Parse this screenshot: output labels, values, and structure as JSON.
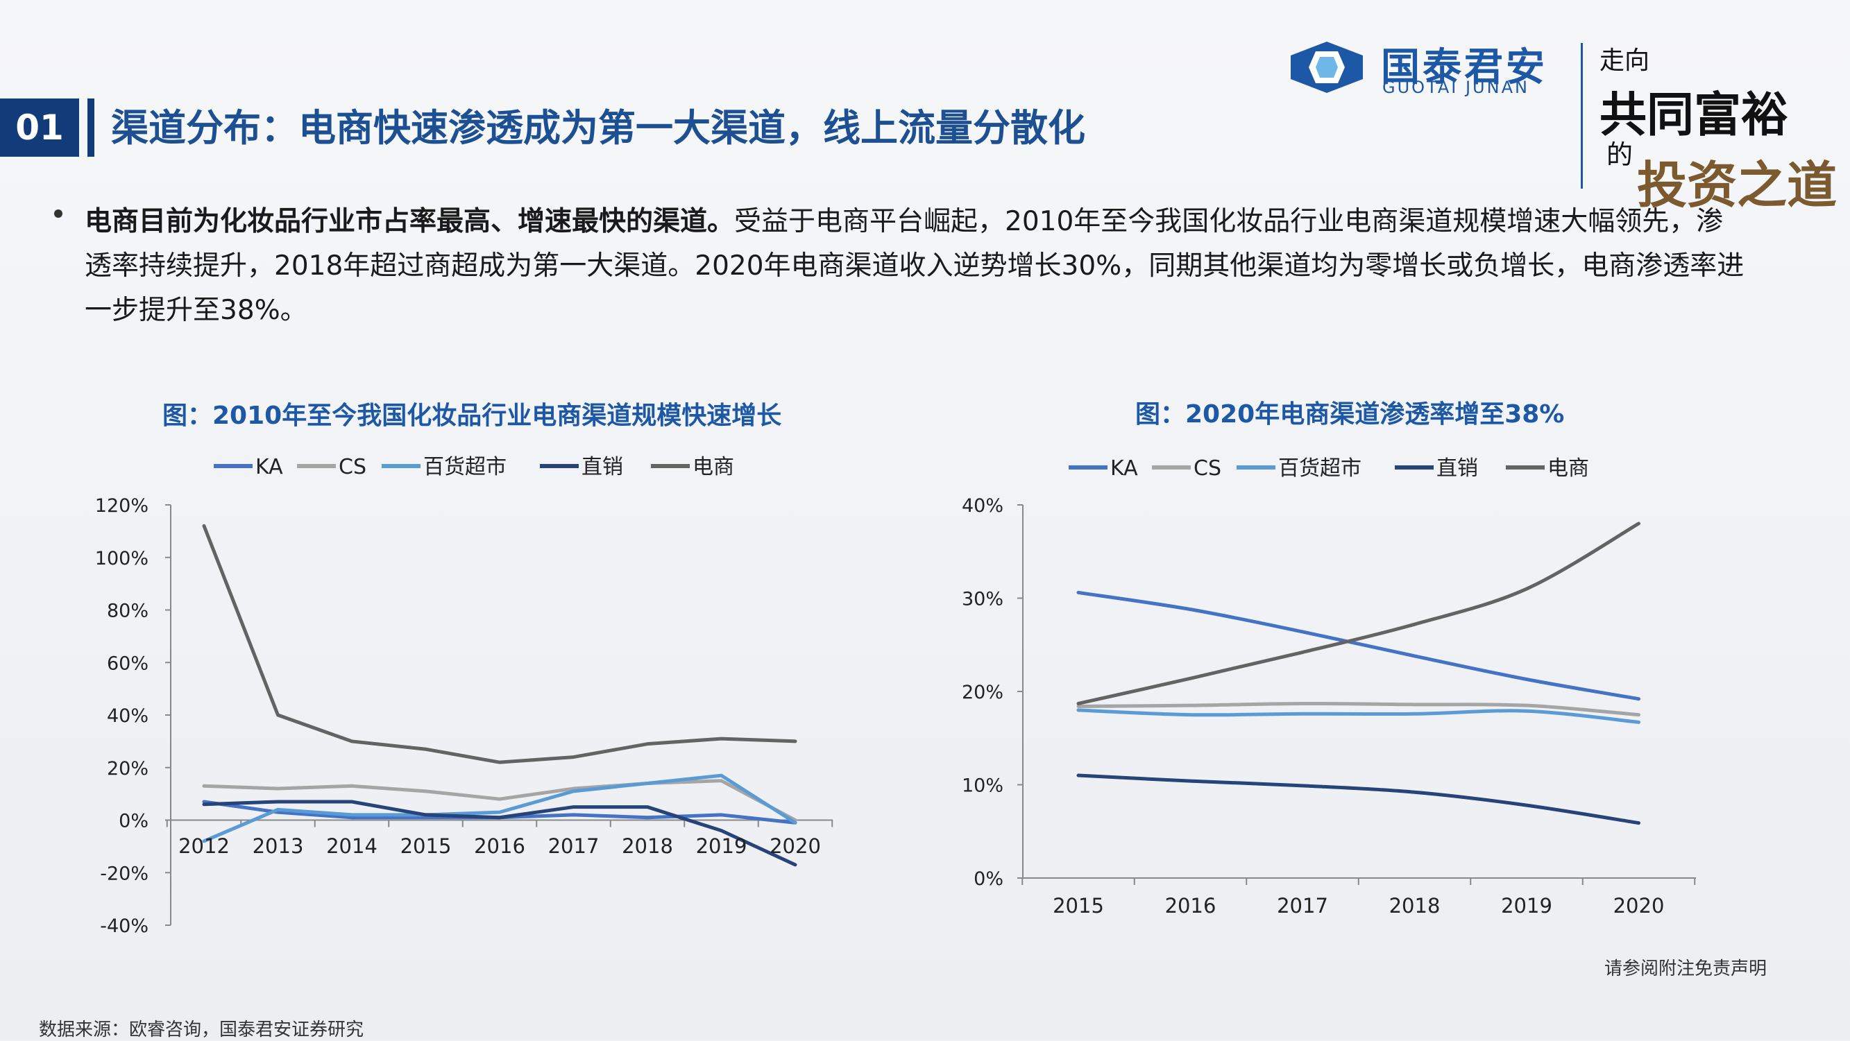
{
  "header": {
    "section_number": "01",
    "title": "渠道分布：电商快速渗透成为第一大渠道，线上流量分散化"
  },
  "logo": {
    "name_cn": "国泰君安",
    "name_en": "GUOTAI JUNAN",
    "slogan_line1": "走向",
    "slogan_line2": "共同富裕",
    "slogan_line3": "的",
    "slogan_line4": "投资之道",
    "brand_color": "#1d58a6"
  },
  "bullet": {
    "bold_text": "电商目前为化妆品行业市占率最高、增速最快的渠道。",
    "text": "受益于电商平台崛起，2010年至今我国化妆品行业电商渠道规模增速大幅领先，渗透率持续提升，2018年超过商超成为第一大渠道。2020年电商渠道收入逆势增长30%，同期其他渠道均为零增长或负增长，电商渗透率进一步提升至38%。"
  },
  "chart_data": [
    {
      "type": "line",
      "title": "图：2010年至今我国化妆品行业电商渠道规模快速增长",
      "categories": [
        "2012",
        "2013",
        "2014",
        "2015",
        "2016",
        "2017",
        "2018",
        "2019",
        "2020"
      ],
      "y_ticks": [
        "120%",
        "100%",
        "80%",
        "60%",
        "40%",
        "20%",
        "0%",
        "-20%",
        "-40%"
      ],
      "ylim": [
        -40,
        120
      ],
      "y_unit": "%",
      "grid": false,
      "legend_position": "top",
      "series": [
        {
          "name": "KA",
          "color": "#4472c4",
          "values": [
            7,
            3,
            1,
            1,
            1,
            2,
            1,
            2,
            -1
          ]
        },
        {
          "name": "CS",
          "color": "#a5a5a5",
          "values": [
            13,
            12,
            13,
            11,
            8,
            12,
            14,
            15,
            0
          ]
        },
        {
          "name": "百货超市",
          "color": "#5b9bd5",
          "values": [
            -8,
            4,
            2,
            2,
            3,
            11,
            14,
            17,
            -1
          ]
        },
        {
          "name": "直销",
          "color": "#264478",
          "values": [
            6,
            7,
            7,
            2,
            1,
            5,
            5,
            -4,
            -17
          ]
        },
        {
          "name": "电商",
          "color": "#636363",
          "values": [
            112,
            40,
            30,
            27,
            22,
            24,
            29,
            31,
            30
          ]
        }
      ]
    },
    {
      "type": "line",
      "title": "图：2020年电商渠道渗透率增至38%",
      "categories": [
        "2015",
        "2016",
        "2017",
        "2018",
        "2019",
        "2020"
      ],
      "y_ticks": [
        "40%",
        "30%",
        "20%",
        "10%",
        "0%"
      ],
      "ylim": [
        0,
        40
      ],
      "y_unit": "%",
      "grid": false,
      "legend_position": "top",
      "series": [
        {
          "name": "KA",
          "color": "#4472c4",
          "values": [
            30.6,
            28.8,
            26.4,
            23.8,
            21.3,
            19.2
          ]
        },
        {
          "name": "CS",
          "color": "#a5a5a5",
          "values": [
            18.4,
            18.5,
            18.7,
            18.6,
            18.5,
            17.5
          ]
        },
        {
          "name": "百货超市",
          "color": "#5b9bd5",
          "values": [
            18.0,
            17.5,
            17.6,
            17.6,
            17.9,
            16.7
          ]
        },
        {
          "name": "直销",
          "color": "#264478",
          "values": [
            11.0,
            10.4,
            9.9,
            9.2,
            7.8,
            5.9
          ]
        },
        {
          "name": "电商",
          "color": "#636363",
          "values": [
            18.7,
            21.4,
            24.2,
            27.2,
            31.0,
            38.0
          ]
        }
      ]
    }
  ],
  "footer": {
    "source": "数据来源：欧睿咨询，国泰君安证券研究",
    "disclaimer": "请参阅附注免责声明"
  }
}
